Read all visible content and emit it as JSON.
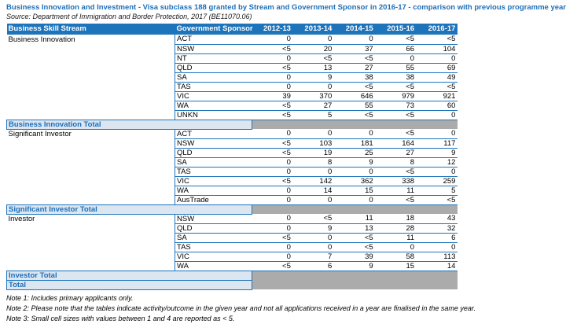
{
  "title": "Business Innovation and Investment - Visa subclass 188 granted by Stream and Government Sponsor in 2016-17 - comparison with previous programme year",
  "source": "Source: Department of Immigration and Border Protection, 2017 (BE11070.06)",
  "colors": {
    "header_blue": "#1e74bb",
    "title_blue": "#1d6fb8",
    "total_row_fill": "#dce6f1",
    "suppressed_fill": "#ababab",
    "row_border": "#1e74bb"
  },
  "table": {
    "columns": [
      "Business Skill Stream",
      "Government Sponsor",
      "2012-13",
      "2013-14",
      "2014-15",
      "2015-16",
      "2016-17"
    ],
    "groups": [
      {
        "stream": "Business Innovation",
        "total_label": "Business Innovation Total",
        "rows": [
          {
            "sponsor": "ACT",
            "values": [
              "0",
              "0",
              "0",
              "<5",
              "<5"
            ]
          },
          {
            "sponsor": "NSW",
            "values": [
              "<5",
              "20",
              "37",
              "66",
              "104"
            ]
          },
          {
            "sponsor": "NT",
            "values": [
              "0",
              "<5",
              "<5",
              "0",
              "0"
            ]
          },
          {
            "sponsor": "QLD",
            "values": [
              "<5",
              "13",
              "27",
              "55",
              "69"
            ]
          },
          {
            "sponsor": "SA",
            "values": [
              "0",
              "9",
              "38",
              "38",
              "49"
            ]
          },
          {
            "sponsor": "TAS",
            "values": [
              "0",
              "0",
              "<5",
              "<5",
              "<5"
            ]
          },
          {
            "sponsor": "VIC",
            "values": [
              "39",
              "370",
              "646",
              "979",
              "921"
            ]
          },
          {
            "sponsor": "WA",
            "values": [
              "<5",
              "27",
              "55",
              "73",
              "60"
            ]
          },
          {
            "sponsor": "UNKN",
            "values": [
              "<5",
              "5",
              "<5",
              "<5",
              "0"
            ]
          }
        ]
      },
      {
        "stream": "Significant Investor",
        "total_label": "Significant Investor Total",
        "rows": [
          {
            "sponsor": "ACT",
            "values": [
              "0",
              "0",
              "0",
              "<5",
              "0"
            ]
          },
          {
            "sponsor": "NSW",
            "values": [
              "<5",
              "103",
              "181",
              "164",
              "117"
            ]
          },
          {
            "sponsor": "QLD",
            "values": [
              "<5",
              "19",
              "25",
              "27",
              "9"
            ]
          },
          {
            "sponsor": "SA",
            "values": [
              "0",
              "8",
              "9",
              "8",
              "12"
            ]
          },
          {
            "sponsor": "TAS",
            "values": [
              "0",
              "0",
              "0",
              "<5",
              "0"
            ]
          },
          {
            "sponsor": "VIC",
            "values": [
              "<5",
              "142",
              "362",
              "338",
              "259"
            ]
          },
          {
            "sponsor": "WA",
            "values": [
              "0",
              "14",
              "15",
              "11",
              "5"
            ]
          },
          {
            "sponsor": "AusTrade",
            "values": [
              "0",
              "0",
              "0",
              "<5",
              "<5"
            ]
          }
        ]
      },
      {
        "stream": "Investor",
        "total_label": "Investor Total",
        "rows": [
          {
            "sponsor": "NSW",
            "values": [
              "0",
              "<5",
              "11",
              "18",
              "43"
            ]
          },
          {
            "sponsor": "QLD",
            "values": [
              "0",
              "9",
              "13",
              "28",
              "32"
            ]
          },
          {
            "sponsor": "SA",
            "values": [
              "<5",
              "0",
              "<5",
              "11",
              "6"
            ]
          },
          {
            "sponsor": "TAS",
            "values": [
              "0",
              "0",
              "<5",
              "0",
              "0"
            ]
          },
          {
            "sponsor": "VIC",
            "values": [
              "0",
              "7",
              "39",
              "58",
              "113"
            ]
          },
          {
            "sponsor": "WA",
            "values": [
              "<5",
              "6",
              "9",
              "15",
              "14"
            ]
          }
        ]
      }
    ],
    "grand_total_label": "Total"
  },
  "notes": [
    "Note 1: Includes primary applicants only.",
    "Note 2: Please note that the tables indicate activity/outcome in the given year and not all applications received in a year are finalised in the same year.",
    "Note 3: Small cell sizes with values between 1 and 4 are reported as < 5."
  ]
}
